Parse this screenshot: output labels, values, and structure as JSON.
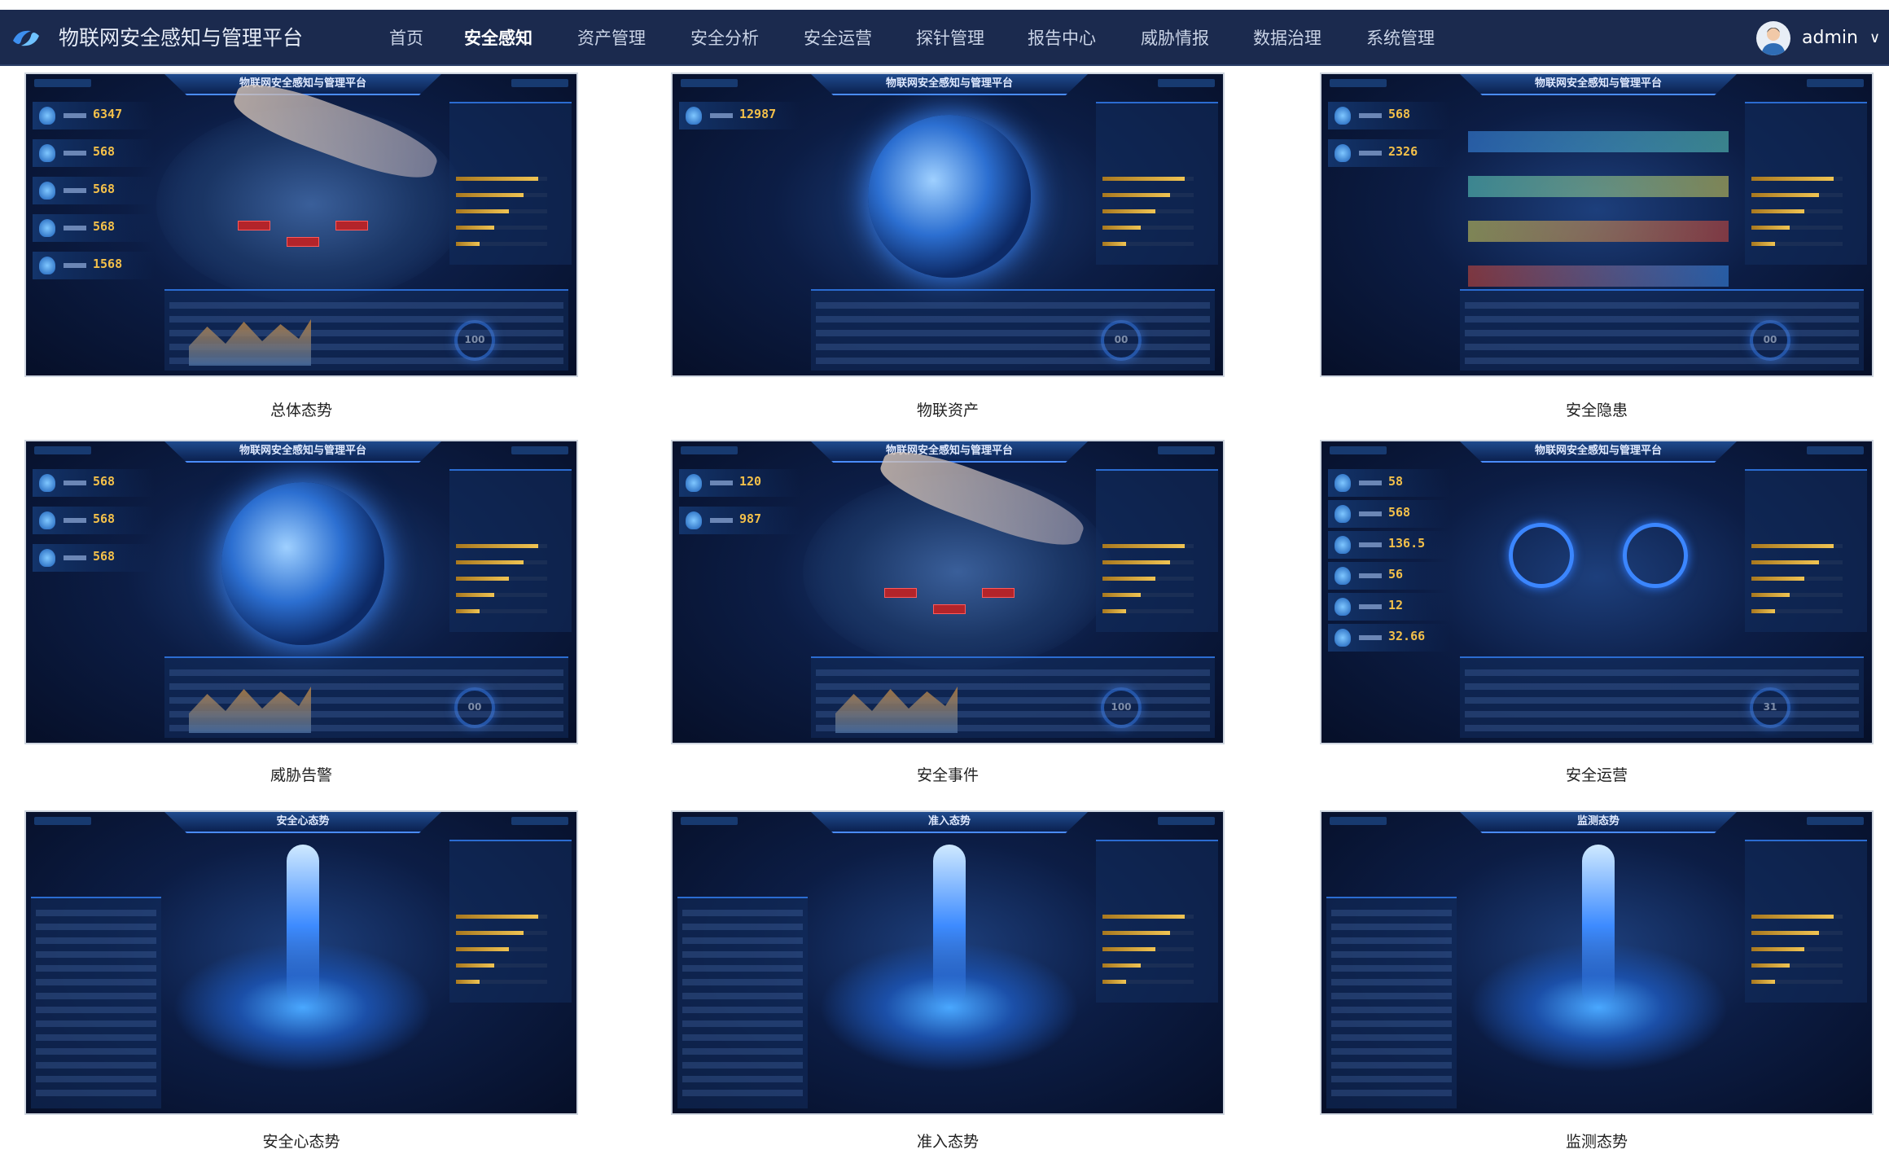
{
  "header": {
    "app_title": "物联网安全感知与管理平台",
    "logo_icon": "shield-swirl-logo",
    "nav": [
      {
        "label": "首页",
        "active": false
      },
      {
        "label": "安全感知",
        "active": true
      },
      {
        "label": "资产管理",
        "active": false
      },
      {
        "label": "安全分析",
        "active": false
      },
      {
        "label": "安全运营",
        "active": false
      },
      {
        "label": "探针管理",
        "active": false
      },
      {
        "label": "报告中心",
        "active": false
      },
      {
        "label": "威胁情报",
        "active": false
      },
      {
        "label": "数据治理",
        "active": false
      },
      {
        "label": "系统管理",
        "active": false
      }
    ],
    "user": {
      "name": "admin",
      "caret": "∨"
    }
  },
  "colors": {
    "header_bg": "#1b2a4e",
    "accent": "#3b86ff",
    "gold": "#f3c04a"
  },
  "cards": [
    {
      "label": "总体态势",
      "screen_title": "物联网安全感知与管理平台",
      "kind": "map",
      "stats": [
        "6347",
        "568",
        "568",
        "568",
        "1568"
      ],
      "ring": "100"
    },
    {
      "label": "物联资产",
      "screen_title": "物联网安全感知与管理平台",
      "kind": "globe",
      "stats": [
        "12987"
      ],
      "ring": "00"
    },
    {
      "label": "安全隐患",
      "screen_title": "物联网安全感知与管理平台",
      "kind": "sankey",
      "stats": [
        "568",
        "2326"
      ],
      "ring": "00"
    },
    {
      "label": "威胁告警",
      "screen_title": "物联网安全感知与管理平台",
      "kind": "earth",
      "stats": [
        "568",
        "568",
        "568"
      ],
      "ring": "00"
    },
    {
      "label": "安全事件",
      "screen_title": "物联网安全感知与管理平台",
      "kind": "map",
      "stats": [
        "120",
        "987"
      ],
      "ring": "100"
    },
    {
      "label": "安全运营",
      "screen_title": "物联网安全感知与管理平台",
      "kind": "rings",
      "stats": [
        "58",
        "568",
        "136.5",
        "56",
        "12",
        "32.66"
      ],
      "ring": "31"
    },
    {
      "label": "安全心态势",
      "screen_title": "安全心态势",
      "kind": "fountain",
      "stats": [],
      "ring": ""
    },
    {
      "label": "准入态势",
      "screen_title": "准入态势",
      "kind": "fountain",
      "stats": [],
      "ring": ""
    },
    {
      "label": "监测态势",
      "screen_title": "监测态势",
      "kind": "iso",
      "stats": [],
      "ring": ""
    }
  ]
}
